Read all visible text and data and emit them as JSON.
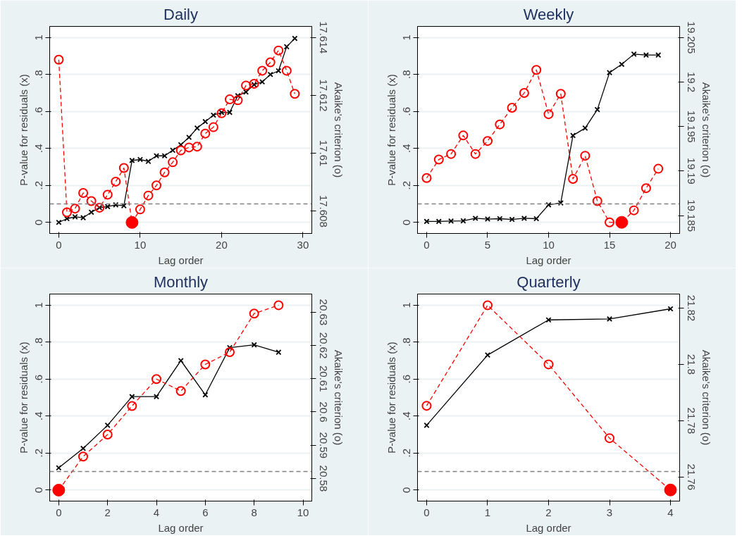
{
  "chart_data": [
    {
      "type": "line",
      "title": "Daily",
      "xlabel": "Lag order",
      "ylabel": "P-value for residuals (x)",
      "y2label": "Akaike's criterion (o)",
      "grid": "y",
      "xlim": [
        -1.12,
        31.09
      ],
      "xticks": [
        0,
        10,
        20,
        30
      ],
      "ylim": [
        -0.06,
        1.06
      ],
      "yticks": [
        0,
        {
          "value": 0.2,
          "label": ".2"
        },
        {
          "value": 0.4,
          "label": ".4"
        },
        {
          "value": 0.6,
          "label": ".6"
        },
        {
          "value": 0.8,
          "label": ".8"
        },
        1
      ],
      "y2lim": [
        17.60723,
        17.61438
      ],
      "y2ticks": [
        17.608,
        17.61,
        17.612,
        17.614
      ],
      "ref_lines": [
        {
          "axis": "y",
          "value": 0.1,
          "color": "#808080",
          "line_style": "dashed"
        }
      ],
      "series": [
        {
          "color": "#000000",
          "marker": "cross",
          "line_style": "solid",
          "x": [
            0,
            1,
            2,
            3,
            4,
            5,
            6,
            7,
            8,
            9,
            10,
            11,
            12,
            13,
            14,
            15,
            16,
            17,
            18,
            19,
            20,
            21,
            22,
            23,
            24,
            25,
            26,
            27,
            28,
            29
          ],
          "values": [
            0.0,
            0.02,
            0.03,
            0.025,
            0.055,
            0.08,
            0.085,
            0.095,
            0.09,
            0.335,
            0.34,
            0.33,
            0.36,
            0.36,
            0.39,
            0.42,
            0.46,
            0.51,
            0.545,
            0.58,
            0.595,
            0.595,
            0.685,
            0.705,
            0.745,
            0.76,
            0.8,
            0.82,
            0.95,
            0.995
          ]
        },
        {
          "axis": "y2",
          "color": "#ff0000",
          "marker": "circle",
          "line_style": "dashed",
          "x": [
            0,
            1,
            2,
            3,
            4,
            5,
            6,
            7,
            8,
            9,
            10,
            11,
            12,
            13,
            14,
            15,
            16,
            17,
            18,
            19,
            20,
            21,
            22,
            23,
            24,
            25,
            26,
            27,
            28,
            29
          ],
          "values": [
            17.61323,
            17.60796,
            17.60809,
            17.60863,
            17.60835,
            17.60812,
            17.60857,
            17.60902,
            17.60949,
            17.60761,
            17.60806,
            17.60854,
            17.60889,
            17.60934,
            17.60969,
            17.6101,
            17.6102,
            17.61023,
            17.61068,
            17.6109,
            17.61138,
            17.61186,
            17.61183,
            17.61234,
            17.6124,
            17.61285,
            17.61314,
            17.61355,
            17.61285,
            17.61205
          ]
        },
        {
          "type": "scatter",
          "axis": "y2",
          "color": "#ff0000",
          "marker": "circle",
          "x": [
            9
          ],
          "values": [
            17.60761
          ]
        }
      ]
    },
    {
      "type": "line",
      "title": "Weekly",
      "xlabel": "Lag order",
      "ylabel": "P-value for residuals (x)",
      "y2label": "Akaike's criterion (o)",
      "grid": "y",
      "xlim": [
        -0.75,
        20.75
      ],
      "xticks": [
        0,
        5,
        10,
        15,
        20
      ],
      "ylim": [
        -0.06,
        1.06
      ],
      "yticks": [
        0,
        {
          "value": 0.2,
          "label": ".2"
        },
        {
          "value": 0.4,
          "label": ".4"
        },
        {
          "value": 0.6,
          "label": ".6"
        },
        {
          "value": 0.8,
          "label": ".8"
        },
        1
      ],
      "y2lim": [
        19.18299,
        19.20625
      ],
      "y2ticks": [
        19.185,
        19.19,
        19.195,
        19.2,
        19.205
      ],
      "ref_lines": [
        {
          "axis": "y",
          "value": 0.1,
          "color": "#808080",
          "line_style": "dashed"
        }
      ],
      "series": [
        {
          "color": "#000000",
          "marker": "cross",
          "line_style": "solid",
          "x": [
            0,
            1,
            2,
            3,
            4,
            5,
            6,
            7,
            8,
            9,
            10,
            11,
            12,
            13,
            14,
            15,
            16,
            17,
            18,
            19
          ],
          "values": [
            0.005,
            0.005,
            0.007,
            0.008,
            0.022,
            0.018,
            0.02,
            0.016,
            0.022,
            0.02,
            0.095,
            0.105,
            0.47,
            0.51,
            0.61,
            0.81,
            0.855,
            0.91,
            0.905,
            0.905
          ]
        },
        {
          "axis": "y2",
          "color": "#ff0000",
          "marker": "circle",
          "line_style": "dashed",
          "x": [
            0,
            1,
            2,
            3,
            4,
            5,
            6,
            7,
            8,
            9,
            10,
            11,
            12,
            13,
            14,
            15,
            16,
            17,
            18,
            19
          ],
          "values": [
            19.18922,
            19.1913,
            19.19192,
            19.194,
            19.19192,
            19.19338,
            19.19524,
            19.19711,
            19.19877,
            19.20137,
            19.19639,
            19.19867,
            19.18912,
            19.19172,
            19.18663,
            19.18424,
            19.18424,
            19.18559,
            19.18808,
            19.19026
          ]
        },
        {
          "type": "scatter",
          "axis": "y2",
          "color": "#ff0000",
          "marker": "circle",
          "x": [
            16
          ],
          "values": [
            19.18424
          ]
        }
      ]
    },
    {
      "type": "line",
      "title": "Monthly",
      "xlabel": "Lag order",
      "ylabel": "P-value for residuals (x)",
      "y2label": "Akaike's criterion (o)",
      "grid": "y",
      "xlim": [
        -0.37,
        10.36
      ],
      "xticks": [
        0,
        2,
        4,
        6,
        8,
        10
      ],
      "ylim": [
        -0.06,
        1.06
      ],
      "yticks": [
        0,
        {
          "value": 0.2,
          "label": ".2"
        },
        {
          "value": 0.4,
          "label": ".4"
        },
        {
          "value": 0.6,
          "label": ".6"
        },
        {
          "value": 0.8,
          "label": ".8"
        },
        1
      ],
      "y2lim": [
        20.5732,
        20.63547
      ],
      "y2ticks": [
        20.58,
        20.59,
        20.6,
        20.61,
        20.62,
        20.63
      ],
      "ref_lines": [
        {
          "axis": "y",
          "value": 0.1,
          "color": "#808080",
          "line_style": "dashed"
        }
      ],
      "series": [
        {
          "color": "#000000",
          "marker": "cross",
          "line_style": "solid",
          "x": [
            0,
            1,
            2,
            3,
            4,
            5,
            6,
            7,
            8,
            9
          ],
          "values": [
            0.12,
            0.225,
            0.35,
            0.505,
            0.505,
            0.7,
            0.515,
            0.77,
            0.785,
            0.745
          ]
        },
        {
          "axis": "y2",
          "color": "#ff0000",
          "marker": "circle",
          "line_style": "dashed",
          "x": [
            0,
            1,
            2,
            3,
            4,
            5,
            6,
            7,
            8,
            9
          ],
          "values": [
            20.5765,
            20.5866,
            20.5932,
            20.6018,
            20.6099,
            20.6063,
            20.6143,
            20.618,
            20.6296,
            20.6321
          ]
        },
        {
          "type": "scatter",
          "axis": "y2",
          "color": "#ff0000",
          "marker": "circle",
          "x": [
            0
          ],
          "values": [
            20.5765
          ]
        }
      ]
    },
    {
      "type": "line",
      "title": "Quarterly",
      "xlabel": "Lag order",
      "ylabel": "P-value for residuals (x)",
      "y2label": "Akaike's criterion (o)",
      "grid": "y",
      "xlim": [
        -0.15,
        4.15
      ],
      "xticks": [
        0,
        1,
        2,
        3,
        4
      ],
      "ylim": [
        -0.06,
        1.06
      ],
      "yticks": [
        0,
        {
          "value": 0.2,
          "label": ".2"
        },
        {
          "value": 0.4,
          "label": ".4"
        },
        {
          "value": 0.6,
          "label": ".6"
        },
        {
          "value": 0.8,
          "label": ".8"
        },
        1
      ],
      "y2lim": [
        21.75145,
        21.82498
      ],
      "y2ticks": [
        21.76,
        21.78,
        21.8,
        21.82
      ],
      "ref_lines": [
        {
          "axis": "y",
          "value": 0.1,
          "color": "#808080",
          "line_style": "dashed"
        }
      ],
      "series": [
        {
          "color": "#000000",
          "marker": "cross",
          "line_style": "solid",
          "x": [
            0,
            1,
            2,
            3,
            4
          ],
          "values": [
            0.35,
            0.73,
            0.92,
            0.925,
            0.98
          ]
        },
        {
          "axis": "y2",
          "color": "#ff0000",
          "marker": "circle",
          "line_style": "dashed",
          "x": [
            0,
            1,
            2,
            3,
            4
          ],
          "values": [
            21.7853,
            21.821,
            21.8,
            21.7738,
            21.7554
          ]
        },
        {
          "type": "scatter",
          "axis": "y2",
          "color": "#ff0000",
          "marker": "circle",
          "x": [
            4
          ],
          "values": [
            21.7554
          ]
        }
      ]
    }
  ]
}
